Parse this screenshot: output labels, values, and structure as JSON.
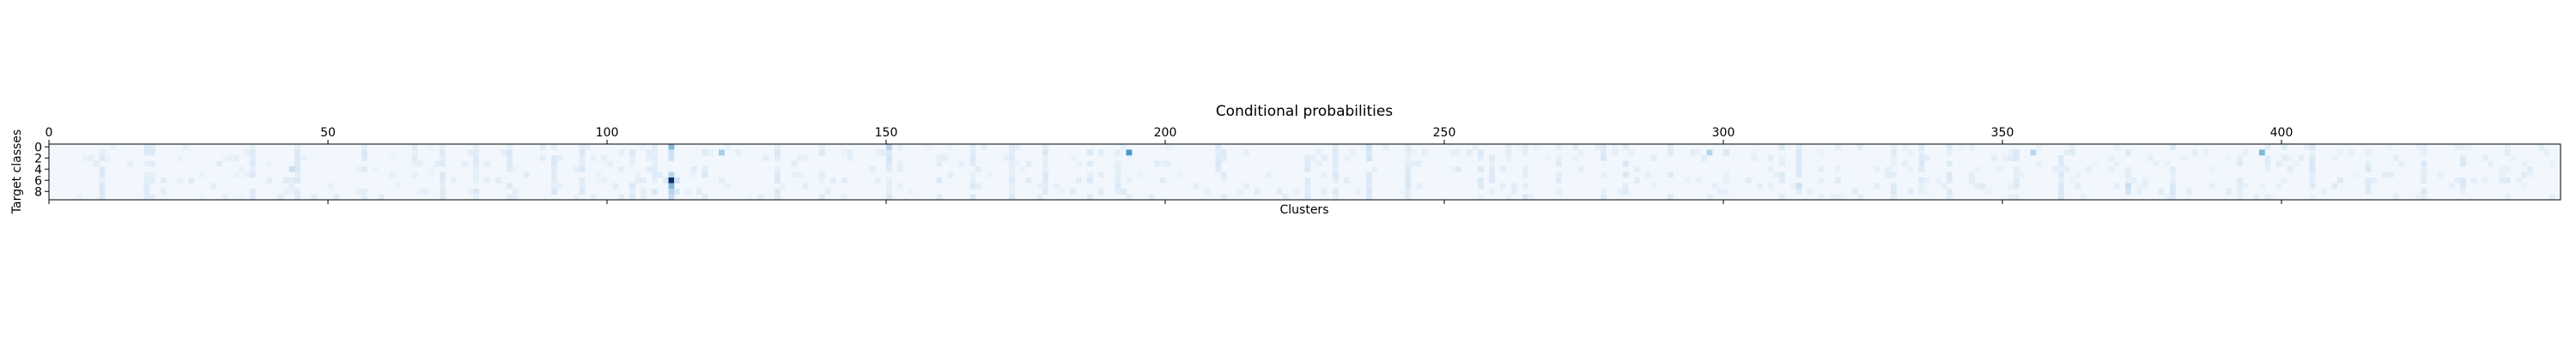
{
  "chart_data": {
    "type": "heatmap",
    "title": "Conditional probabilities",
    "xlabel": "Clusters",
    "ylabel": "Target classes",
    "x_range": [
      0,
      450
    ],
    "y_range": [
      0,
      9
    ],
    "n_clusters": 450,
    "n_classes": 10,
    "x_ticks": [
      0,
      50,
      100,
      150,
      200,
      250,
      300,
      350,
      400
    ],
    "x_tick_labels": [
      "0",
      "50",
      "100",
      "150",
      "200",
      "250",
      "300",
      "350",
      "400"
    ],
    "y_ticks": [
      0,
      2,
      4,
      6,
      8
    ],
    "y_tick_labels": [
      "0",
      "2",
      "4",
      "6",
      "8"
    ],
    "x_axis_position": "top",
    "colormap": "Blues",
    "value_range": [
      0,
      1
    ],
    "background_value": 0.03,
    "cells": [
      {
        "cluster": 111,
        "class": 0,
        "value": 0.45
      },
      {
        "cluster": 111,
        "class": 1,
        "value": 0.2
      },
      {
        "cluster": 111,
        "class": 2,
        "value": 0.2
      },
      {
        "cluster": 111,
        "class": 5,
        "value": 0.3
      },
      {
        "cluster": 111,
        "class": 6,
        "value": 1.0
      },
      {
        "cluster": 111,
        "class": 7,
        "value": 0.45
      },
      {
        "cluster": 111,
        "class": 8,
        "value": 0.3
      },
      {
        "cluster": 111,
        "class": 9,
        "value": 0.25
      },
      {
        "cluster": 112,
        "class": 6,
        "value": 0.2
      },
      {
        "cluster": 112,
        "class": 8,
        "value": 0.15
      },
      {
        "cluster": 120,
        "class": 1,
        "value": 0.35
      },
      {
        "cluster": 150,
        "class": 0,
        "value": 0.3
      },
      {
        "cluster": 150,
        "class": 2,
        "value": 0.18
      },
      {
        "cluster": 150,
        "class": 3,
        "value": 0.15
      },
      {
        "cluster": 193,
        "class": 1,
        "value": 0.6
      },
      {
        "cluster": 236,
        "class": 0,
        "value": 0.2
      },
      {
        "cluster": 236,
        "class": 1,
        "value": 0.15
      },
      {
        "cluster": 236,
        "class": 2,
        "value": 0.18
      },
      {
        "cluster": 297,
        "class": 1,
        "value": 0.3
      },
      {
        "cluster": 355,
        "class": 1,
        "value": 0.28
      },
      {
        "cluster": 396,
        "class": 1,
        "value": 0.45
      },
      {
        "cluster": 43,
        "class": 4,
        "value": 0.22
      },
      {
        "cluster": 313,
        "class": 7,
        "value": 0.22
      },
      {
        "cluster": 372,
        "class": 7,
        "value": 0.22
      },
      {
        "cluster": 372,
        "class": 8,
        "value": 0.18
      }
    ],
    "light_columns": [
      9,
      17,
      18,
      36,
      44,
      56,
      70,
      76,
      82,
      90,
      95,
      104,
      108,
      117,
      130,
      138,
      150,
      159,
      165,
      172,
      178,
      186,
      191,
      209,
      210,
      225,
      230,
      236,
      243,
      256,
      258,
      264,
      270,
      278,
      282,
      290,
      300,
      310,
      313,
      320,
      330,
      335,
      340,
      352,
      360,
      372,
      380,
      392,
      405,
      415,
      425,
      432,
      440
    ]
  }
}
